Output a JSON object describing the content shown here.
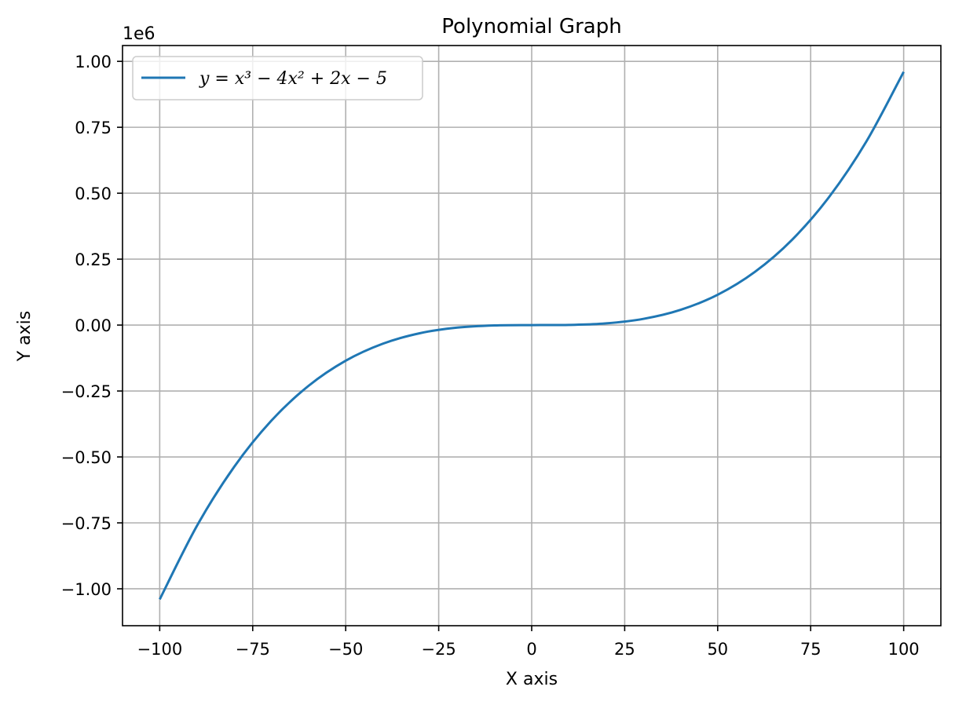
{
  "chart_data": {
    "type": "line",
    "title": "Polynomial Graph",
    "xlabel": "X axis",
    "ylabel": "Y axis",
    "y_offset_label": "1e6",
    "xlim": [
      -110,
      110
    ],
    "ylim": [
      -1.14,
      1.06
    ],
    "grid": true,
    "legend_position": "top-left",
    "x_ticks": [
      -100,
      -75,
      -50,
      -25,
      0,
      25,
      50,
      75,
      100
    ],
    "x_tick_labels": [
      "−100",
      "−75",
      "−50",
      "−25",
      "0",
      "25",
      "50",
      "75",
      "100"
    ],
    "y_ticks": [
      -1.0,
      -0.75,
      -0.5,
      -0.25,
      0.0,
      0.25,
      0.5,
      0.75,
      1.0
    ],
    "y_tick_labels": [
      "−1.00",
      "−0.75",
      "−0.50",
      "−0.25",
      "0.00",
      "0.25",
      "0.50",
      "0.75",
      "1.00"
    ],
    "series": [
      {
        "name": "y = x³ − 4x² + 2x − 5",
        "color": "#1f77b4",
        "x": [
          -100,
          -90,
          -80,
          -70,
          -60,
          -50,
          -40,
          -30,
          -20,
          -10,
          0,
          10,
          20,
          30,
          40,
          50,
          60,
          70,
          80,
          90,
          100
        ],
        "y": [
          -1.040205,
          -0.761585,
          -0.537765,
          -0.362745,
          -0.230525,
          -0.135105,
          -0.070485,
          -0.030665,
          -0.009645,
          -0.001425,
          -5e-06,
          0.000615,
          0.006435,
          0.023455,
          0.057675,
          0.115095,
          0.201715,
          0.323535,
          0.486555,
          0.696775,
          0.960195
        ]
      }
    ]
  }
}
